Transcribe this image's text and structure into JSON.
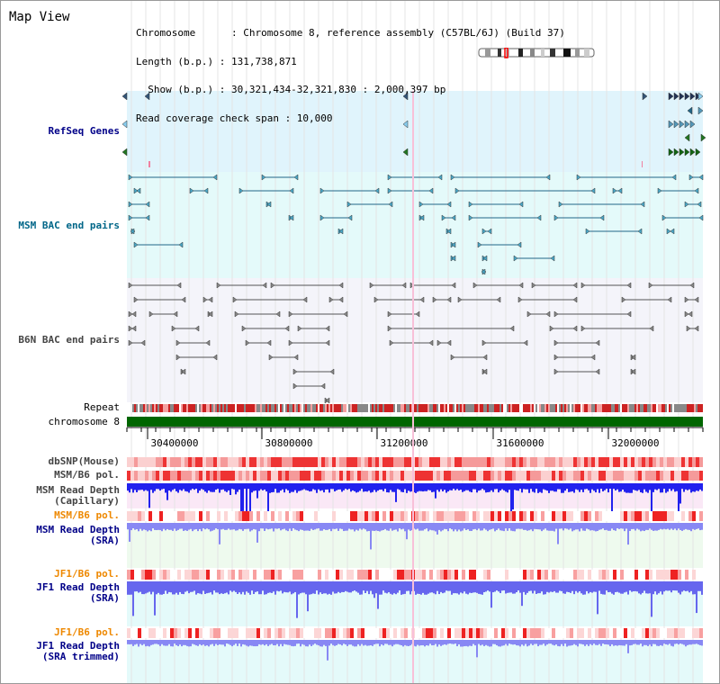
{
  "header": {
    "title": "Map View",
    "info_lines": [
      "Chromosome      : Chromosome 8, reference assembly (C57BL/6J) (Build 37)",
      "Length (b.p.) : 131,738,871",
      "  Show (b.p.) : 30,321,434-32,321,830 : 2,000,397 bp",
      "Read coverage check span : 10,000"
    ]
  },
  "tracks": {
    "refseq": "RefSeq Genes",
    "msm_bac": "MSM BAC end pairs",
    "b6n_bac": "B6N BAC end pairs",
    "repeat": "Repeat",
    "chromosome": "chromosome 8",
    "dbsnp": "dbSNP(Mouse)",
    "msm_b6_pol": "MSM/B6 pol.",
    "msm_depth_cap_1": "MSM Read Depth",
    "msm_depth_cap_2": "(Capillary)",
    "msm_b6_pol2": "MSM/B6 pol.",
    "msm_depth_sra_1": "MSM Read Depth",
    "msm_depth_sra_2": "(SRA)",
    "jf1_pol": "JF1/B6 pol.",
    "jf1_depth_1": "JF1 Read Depth",
    "jf1_depth_2": "(SRA)",
    "jf1_pol2": "JF1/B6 pol.",
    "jf1_trim_1": "JF1 Read Depth",
    "jf1_trim_2": "(SRA trimmed)"
  },
  "axis": {
    "ticks": [
      "30400000",
      "30800000",
      "31200000",
      "31600000",
      "32000000"
    ]
  },
  "colors": {
    "refseq_bg": "#e0f4fc",
    "msm_bg": "#e4fafa",
    "b6n_bg": "#f4f4fa",
    "chrom_green": "#006600",
    "depth_blue": "#2222ee",
    "pol_red": "#ee2222",
    "navy_label": "#000088",
    "orange_label": "#ee8800"
  }
}
